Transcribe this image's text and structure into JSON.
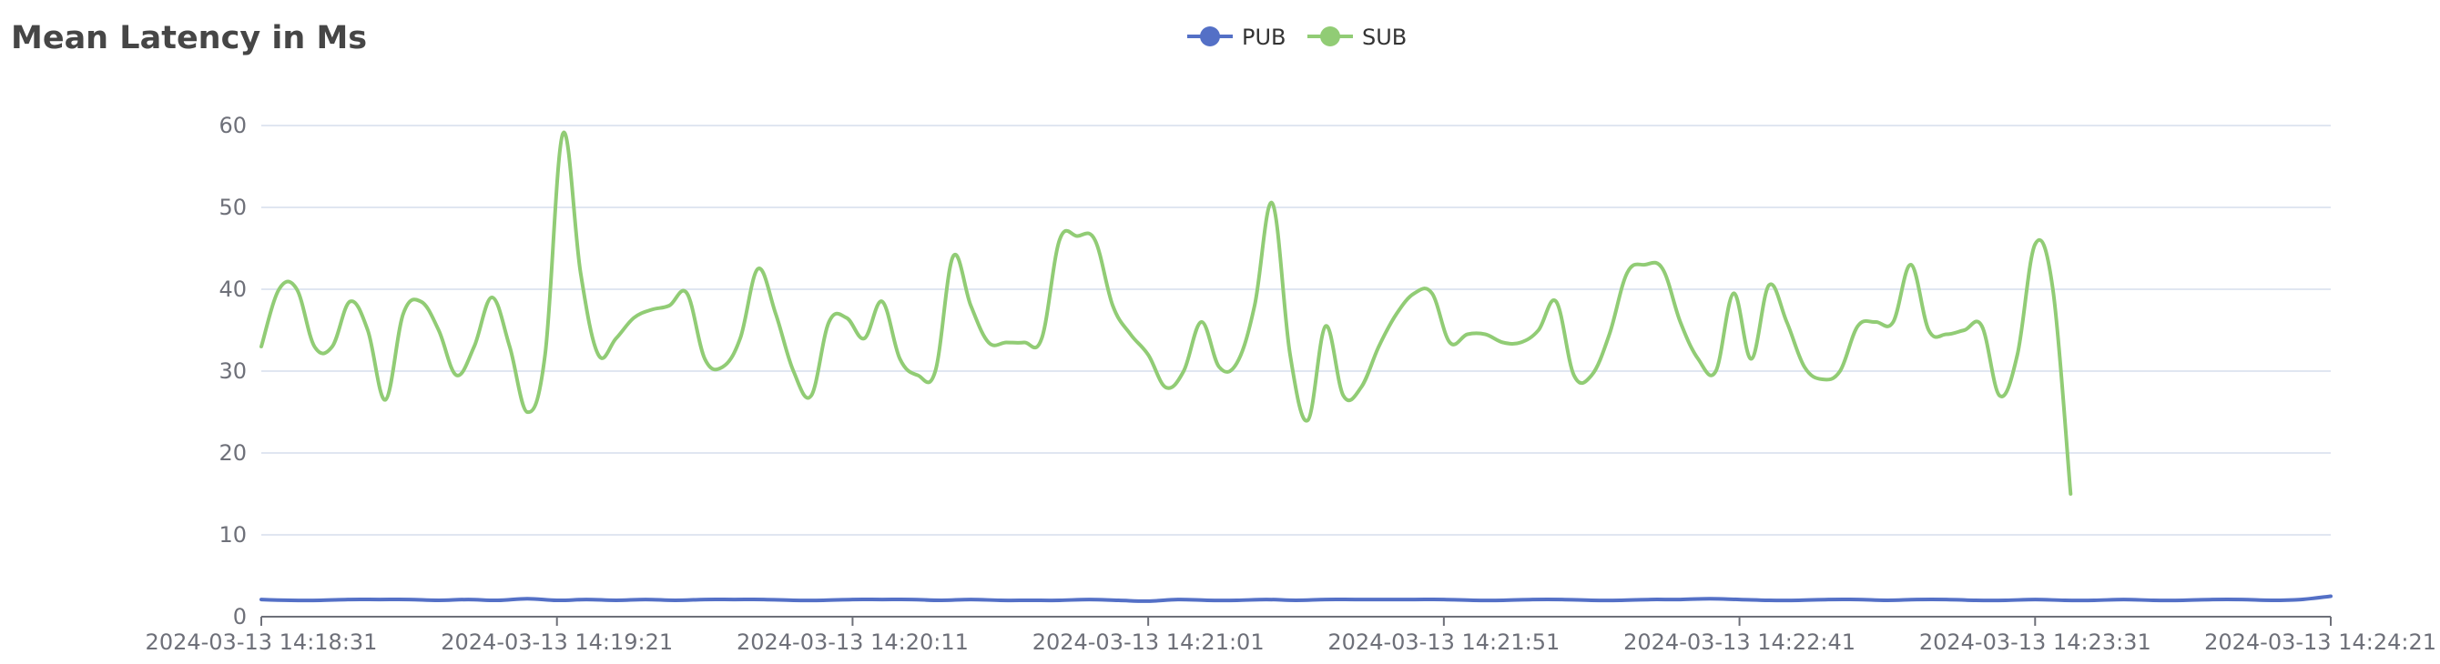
{
  "chart_data": {
    "type": "line",
    "title": "Mean Latency in Ms",
    "xlabel": "",
    "ylabel": "",
    "ylim": [
      0,
      60
    ],
    "y_ticks": [
      0,
      10,
      20,
      30,
      40,
      50,
      60
    ],
    "x_range": [
      "2024-03-13 14:18:31",
      "2024-03-13 14:24:21"
    ],
    "x_ticks": [
      "2024-03-13 14:18:31",
      "2024-03-13 14:19:21",
      "2024-03-13 14:20:11",
      "2024-03-13 14:21:01",
      "2024-03-13 14:21:51",
      "2024-03-13 14:22:41",
      "2024-03-13 14:23:31",
      "2024-03-13 14:24:21"
    ],
    "grid": "horizontal",
    "legend_position": "top-center",
    "smooth": true,
    "series": [
      {
        "name": "PUB",
        "color": "#5470c6",
        "points": [
          [
            "2024-03-13 14:18:31",
            2.1
          ],
          [
            "2024-03-13 14:18:36",
            2.0
          ],
          [
            "2024-03-13 14:18:41",
            2.0
          ],
          [
            "2024-03-13 14:18:46",
            2.1
          ],
          [
            "2024-03-13 14:18:51",
            2.1
          ],
          [
            "2024-03-13 14:18:56",
            2.1
          ],
          [
            "2024-03-13 14:19:01",
            2.0
          ],
          [
            "2024-03-13 14:19:06",
            2.1
          ],
          [
            "2024-03-13 14:19:11",
            2.0
          ],
          [
            "2024-03-13 14:19:16",
            2.2
          ],
          [
            "2024-03-13 14:19:21",
            2.0
          ],
          [
            "2024-03-13 14:19:26",
            2.1
          ],
          [
            "2024-03-13 14:19:31",
            2.0
          ],
          [
            "2024-03-13 14:19:36",
            2.1
          ],
          [
            "2024-03-13 14:19:41",
            2.0
          ],
          [
            "2024-03-13 14:19:46",
            2.1
          ],
          [
            "2024-03-13 14:19:51",
            2.1
          ],
          [
            "2024-03-13 14:19:56",
            2.1
          ],
          [
            "2024-03-13 14:20:01",
            2.0
          ],
          [
            "2024-03-13 14:20:06",
            2.0
          ],
          [
            "2024-03-13 14:20:11",
            2.1
          ],
          [
            "2024-03-13 14:20:16",
            2.1
          ],
          [
            "2024-03-13 14:20:21",
            2.1
          ],
          [
            "2024-03-13 14:20:26",
            2.0
          ],
          [
            "2024-03-13 14:20:31",
            2.1
          ],
          [
            "2024-03-13 14:20:36",
            2.0
          ],
          [
            "2024-03-13 14:20:41",
            2.0
          ],
          [
            "2024-03-13 14:20:46",
            2.0
          ],
          [
            "2024-03-13 14:20:51",
            2.1
          ],
          [
            "2024-03-13 14:20:56",
            2.0
          ],
          [
            "2024-03-13 14:21:01",
            1.9
          ],
          [
            "2024-03-13 14:21:06",
            2.1
          ],
          [
            "2024-03-13 14:21:11",
            2.0
          ],
          [
            "2024-03-13 14:21:16",
            2.0
          ],
          [
            "2024-03-13 14:21:21",
            2.1
          ],
          [
            "2024-03-13 14:21:26",
            2.0
          ],
          [
            "2024-03-13 14:21:31",
            2.1
          ],
          [
            "2024-03-13 14:21:36",
            2.1
          ],
          [
            "2024-03-13 14:21:41",
            2.1
          ],
          [
            "2024-03-13 14:21:46",
            2.1
          ],
          [
            "2024-03-13 14:21:51",
            2.1
          ],
          [
            "2024-03-13 14:21:56",
            2.0
          ],
          [
            "2024-03-13 14:22:01",
            2.0
          ],
          [
            "2024-03-13 14:22:06",
            2.1
          ],
          [
            "2024-03-13 14:22:11",
            2.1
          ],
          [
            "2024-03-13 14:22:16",
            2.0
          ],
          [
            "2024-03-13 14:22:21",
            2.0
          ],
          [
            "2024-03-13 14:22:26",
            2.1
          ],
          [
            "2024-03-13 14:22:31",
            2.1
          ],
          [
            "2024-03-13 14:22:36",
            2.2
          ],
          [
            "2024-03-13 14:22:41",
            2.1
          ],
          [
            "2024-03-13 14:22:46",
            2.0
          ],
          [
            "2024-03-13 14:22:51",
            2.0
          ],
          [
            "2024-03-13 14:22:56",
            2.1
          ],
          [
            "2024-03-13 14:23:01",
            2.1
          ],
          [
            "2024-03-13 14:23:06",
            2.0
          ],
          [
            "2024-03-13 14:23:11",
            2.1
          ],
          [
            "2024-03-13 14:23:16",
            2.1
          ],
          [
            "2024-03-13 14:23:21",
            2.0
          ],
          [
            "2024-03-13 14:23:26",
            2.0
          ],
          [
            "2024-03-13 14:23:31",
            2.1
          ],
          [
            "2024-03-13 14:23:36",
            2.0
          ],
          [
            "2024-03-13 14:23:41",
            2.0
          ],
          [
            "2024-03-13 14:23:46",
            2.1
          ],
          [
            "2024-03-13 14:23:51",
            2.0
          ],
          [
            "2024-03-13 14:23:56",
            2.0
          ],
          [
            "2024-03-13 14:24:01",
            2.1
          ],
          [
            "2024-03-13 14:24:06",
            2.1
          ],
          [
            "2024-03-13 14:24:11",
            2.0
          ],
          [
            "2024-03-13 14:24:16",
            2.1
          ],
          [
            "2024-03-13 14:24:21",
            2.5
          ]
        ]
      },
      {
        "name": "SUB",
        "color": "#91cc75",
        "points": [
          [
            "2024-03-13 14:18:31",
            33
          ],
          [
            "2024-03-13 14:18:34",
            40
          ],
          [
            "2024-03-13 14:18:37",
            40
          ],
          [
            "2024-03-13 14:18:40",
            33
          ],
          [
            "2024-03-13 14:18:43",
            33
          ],
          [
            "2024-03-13 14:18:46",
            38.5
          ],
          [
            "2024-03-13 14:18:49",
            35
          ],
          [
            "2024-03-13 14:18:52",
            26.5
          ],
          [
            "2024-03-13 14:18:55",
            37
          ],
          [
            "2024-03-13 14:18:58",
            38.5
          ],
          [
            "2024-03-13 14:19:01",
            35
          ],
          [
            "2024-03-13 14:19:04",
            29.5
          ],
          [
            "2024-03-13 14:19:07",
            33
          ],
          [
            "2024-03-13 14:19:10",
            39
          ],
          [
            "2024-03-13 14:19:13",
            33
          ],
          [
            "2024-03-13 14:19:16",
            25
          ],
          [
            "2024-03-13 14:19:19",
            32
          ],
          [
            "2024-03-13 14:19:22",
            59
          ],
          [
            "2024-03-13 14:19:25",
            42
          ],
          [
            "2024-03-13 14:19:28",
            32
          ],
          [
            "2024-03-13 14:19:31",
            34
          ],
          [
            "2024-03-13 14:19:34",
            36.5
          ],
          [
            "2024-03-13 14:19:37",
            37.5
          ],
          [
            "2024-03-13 14:19:40",
            38
          ],
          [
            "2024-03-13 14:19:43",
            39.5
          ],
          [
            "2024-03-13 14:19:46",
            31.5
          ],
          [
            "2024-03-13 14:19:49",
            30.5
          ],
          [
            "2024-03-13 14:19:52",
            34
          ],
          [
            "2024-03-13 14:19:55",
            42.5
          ],
          [
            "2024-03-13 14:19:58",
            37
          ],
          [
            "2024-03-13 14:20:01",
            30
          ],
          [
            "2024-03-13 14:20:04",
            27
          ],
          [
            "2024-03-13 14:20:07",
            36
          ],
          [
            "2024-03-13 14:20:10",
            36.5
          ],
          [
            "2024-03-13 14:20:13",
            34
          ],
          [
            "2024-03-13 14:20:16",
            38.5
          ],
          [
            "2024-03-13 14:20:19",
            31.5
          ],
          [
            "2024-03-13 14:20:22",
            29.5
          ],
          [
            "2024-03-13 14:20:25",
            30
          ],
          [
            "2024-03-13 14:20:28",
            44
          ],
          [
            "2024-03-13 14:20:31",
            38
          ],
          [
            "2024-03-13 14:20:34",
            33.5
          ],
          [
            "2024-03-13 14:20:37",
            33.5
          ],
          [
            "2024-03-13 14:20:40",
            33.5
          ],
          [
            "2024-03-13 14:20:43",
            34
          ],
          [
            "2024-03-13 14:20:46",
            46
          ],
          [
            "2024-03-13 14:20:49",
            46.5
          ],
          [
            "2024-03-13 14:20:52",
            46
          ],
          [
            "2024-03-13 14:20:55",
            38
          ],
          [
            "2024-03-13 14:20:58",
            34.5
          ],
          [
            "2024-03-13 14:21:01",
            32
          ],
          [
            "2024-03-13 14:21:04",
            28
          ],
          [
            "2024-03-13 14:21:07",
            30
          ],
          [
            "2024-03-13 14:21:10",
            36
          ],
          [
            "2024-03-13 14:21:13",
            30.5
          ],
          [
            "2024-03-13 14:21:16",
            31
          ],
          [
            "2024-03-13 14:21:19",
            38
          ],
          [
            "2024-03-13 14:21:22",
            50.5
          ],
          [
            "2024-03-13 14:21:25",
            32
          ],
          [
            "2024-03-13 14:21:28",
            24
          ],
          [
            "2024-03-13 14:21:31",
            35.5
          ],
          [
            "2024-03-13 14:21:34",
            27
          ],
          [
            "2024-03-13 14:21:37",
            28
          ],
          [
            "2024-03-13 14:21:40",
            33
          ],
          [
            "2024-03-13 14:21:43",
            37
          ],
          [
            "2024-03-13 14:21:46",
            39.5
          ],
          [
            "2024-03-13 14:21:49",
            39.5
          ],
          [
            "2024-03-13 14:21:52",
            33.5
          ],
          [
            "2024-03-13 14:21:55",
            34.5
          ],
          [
            "2024-03-13 14:21:58",
            34.5
          ],
          [
            "2024-03-13 14:22:01",
            33.5
          ],
          [
            "2024-03-13 14:22:04",
            33.5
          ],
          [
            "2024-03-13 14:22:07",
            35
          ],
          [
            "2024-03-13 14:22:10",
            38.5
          ],
          [
            "2024-03-13 14:22:13",
            29.5
          ],
          [
            "2024-03-13 14:22:16",
            29.5
          ],
          [
            "2024-03-13 14:22:19",
            34.5
          ],
          [
            "2024-03-13 14:22:22",
            42
          ],
          [
            "2024-03-13 14:22:25",
            43
          ],
          [
            "2024-03-13 14:22:28",
            42.5
          ],
          [
            "2024-03-13 14:22:31",
            36
          ],
          [
            "2024-03-13 14:22:34",
            31.5
          ],
          [
            "2024-03-13 14:22:37",
            30
          ],
          [
            "2024-03-13 14:22:40",
            39.5
          ],
          [
            "2024-03-13 14:22:43",
            31.5
          ],
          [
            "2024-03-13 14:22:46",
            40.5
          ],
          [
            "2024-03-13 14:22:49",
            36
          ],
          [
            "2024-03-13 14:22:52",
            30.5
          ],
          [
            "2024-03-13 14:22:55",
            29
          ],
          [
            "2024-03-13 14:22:58",
            30
          ],
          [
            "2024-03-13 14:23:01",
            35.5
          ],
          [
            "2024-03-13 14:23:04",
            36
          ],
          [
            "2024-03-13 14:23:07",
            36
          ],
          [
            "2024-03-13 14:23:10",
            43
          ],
          [
            "2024-03-13 14:23:13",
            35
          ],
          [
            "2024-03-13 14:23:16",
            34.5
          ],
          [
            "2024-03-13 14:23:19",
            35
          ],
          [
            "2024-03-13 14:23:22",
            35.5
          ],
          [
            "2024-03-13 14:23:25",
            27
          ],
          [
            "2024-03-13 14:23:28",
            32
          ],
          [
            "2024-03-13 14:23:31",
            45.5
          ],
          [
            "2024-03-13 14:23:34",
            40
          ],
          [
            "2024-03-13 14:23:37",
            15
          ]
        ]
      }
    ]
  }
}
